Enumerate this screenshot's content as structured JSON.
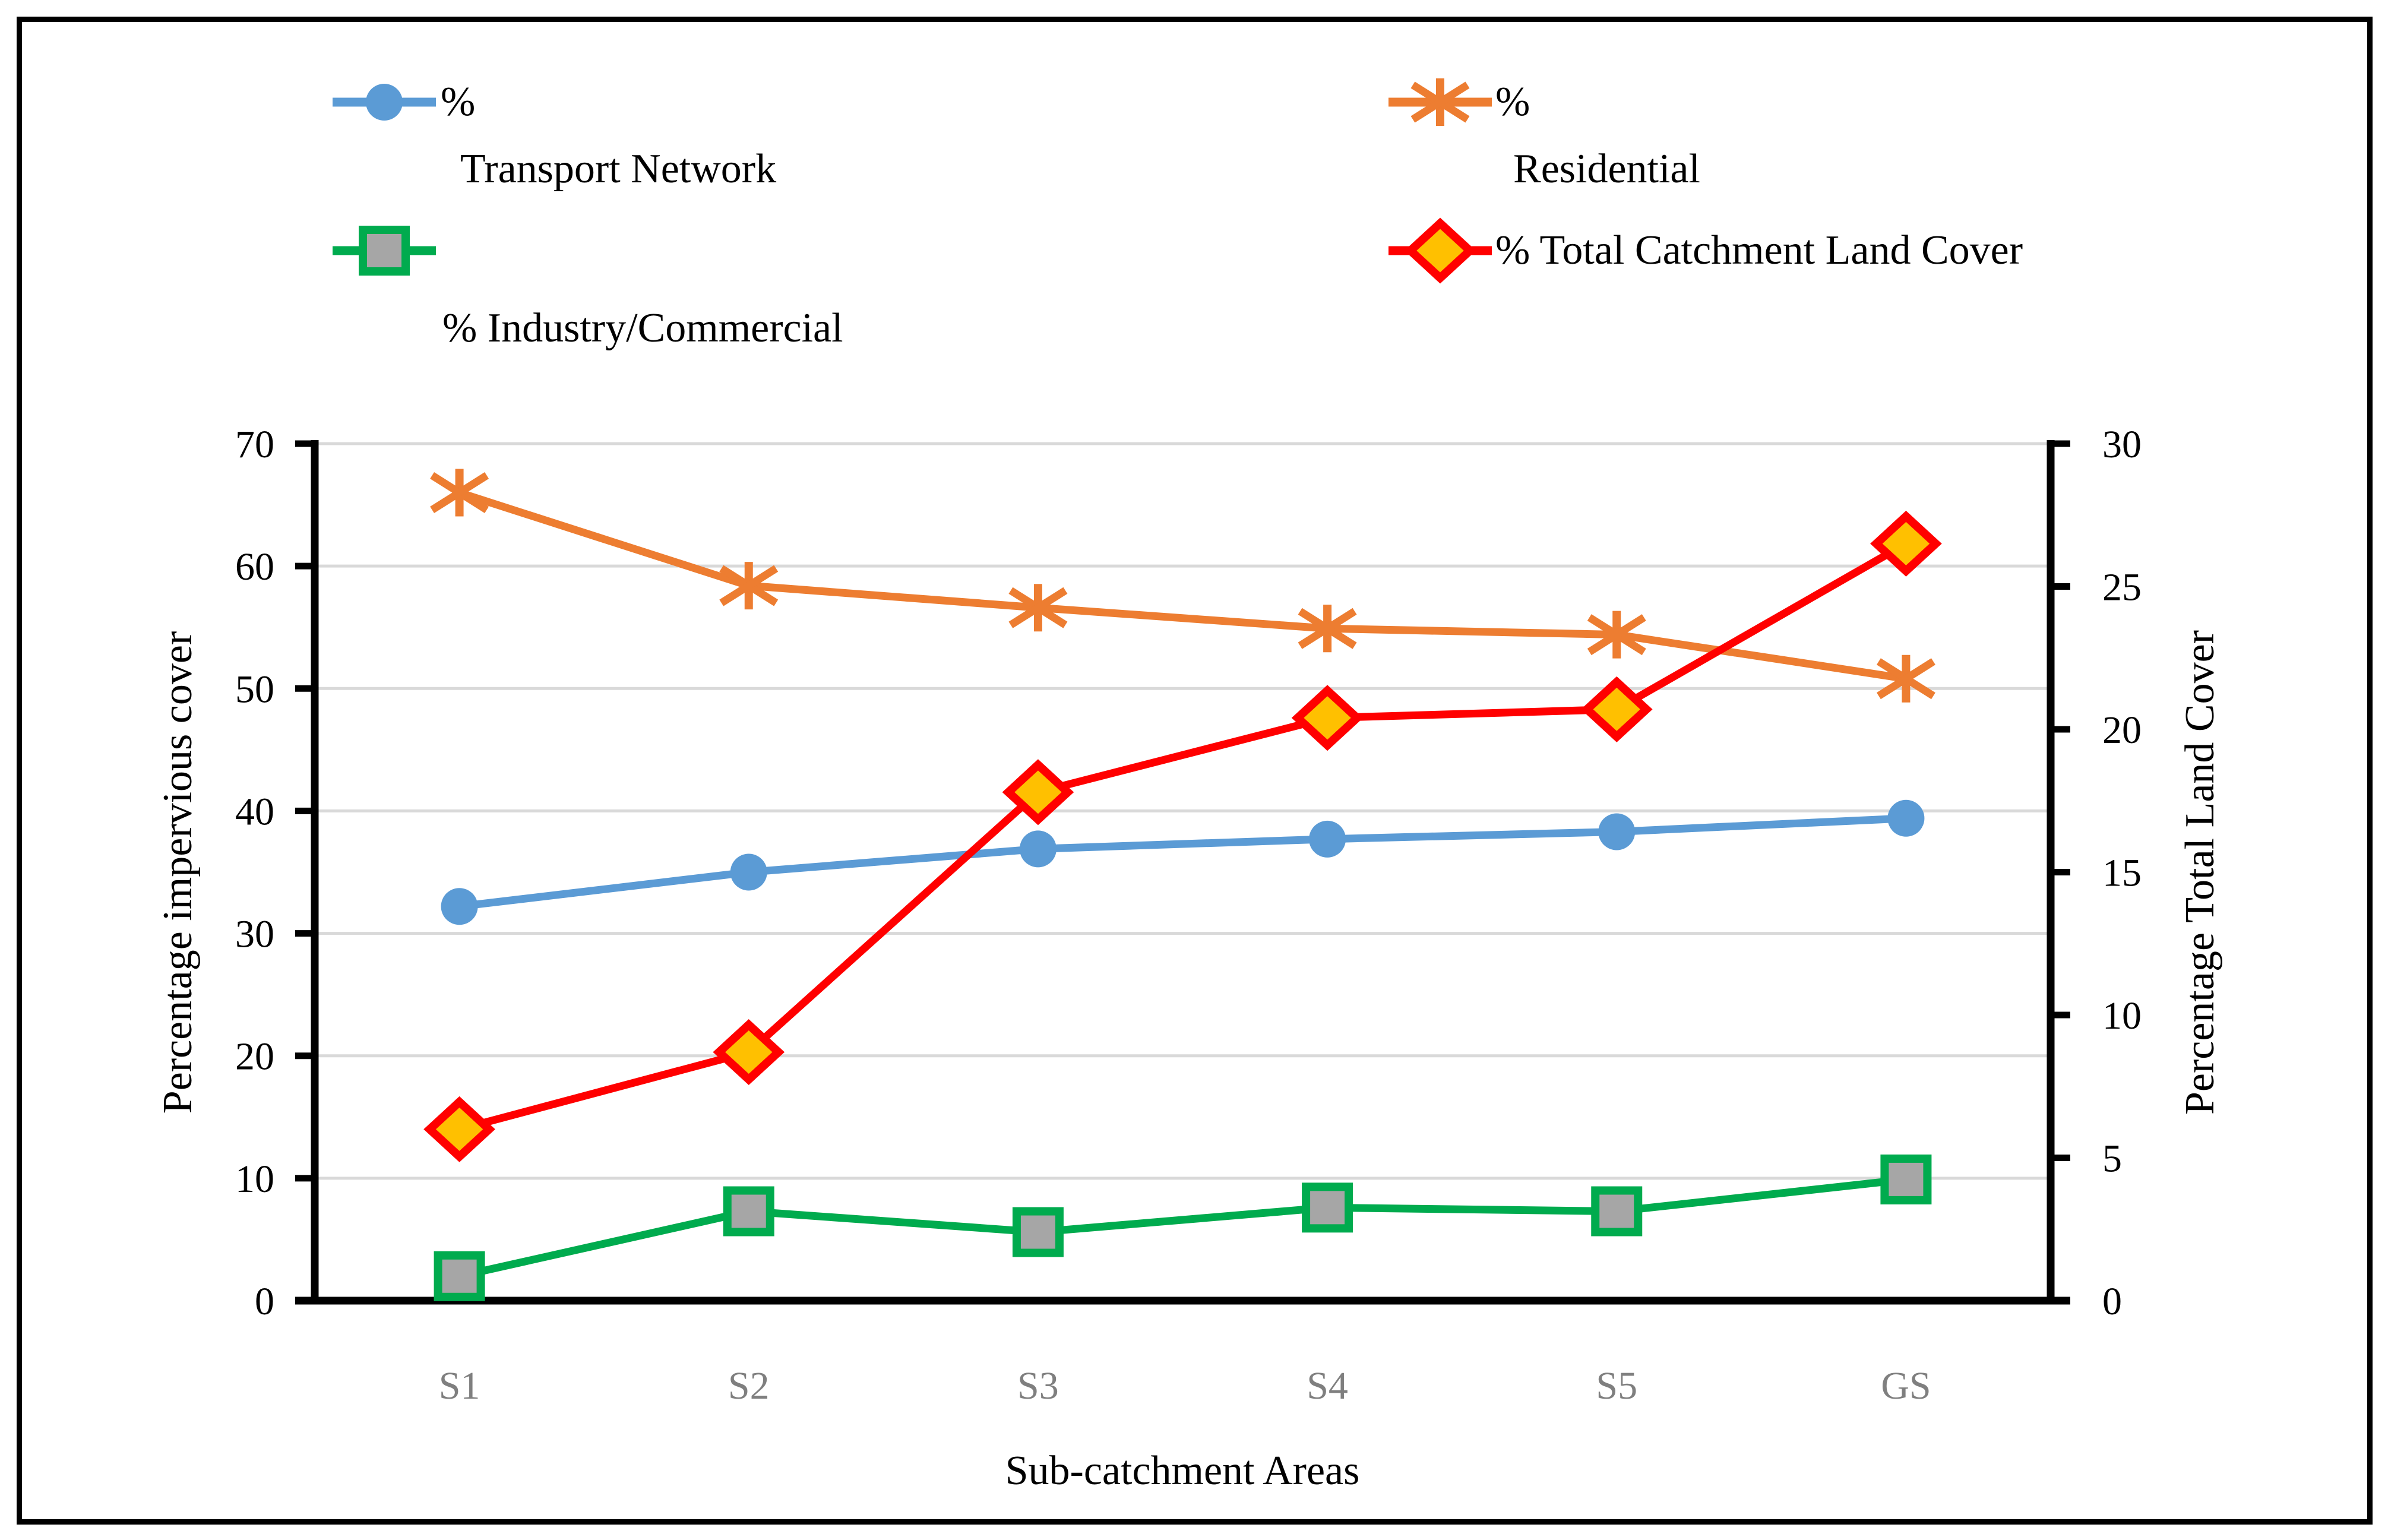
{
  "legend": {
    "items": [
      {
        "id": "transport",
        "label_line1": "%",
        "label_line2": "Transport Network"
      },
      {
        "id": "residential",
        "label_line1": "%",
        "label_line2": "Residential"
      },
      {
        "id": "industry",
        "label": "% Industry/Commercial"
      },
      {
        "id": "total",
        "label": "% Total Catchment Land Cover"
      }
    ]
  },
  "chart_data": {
    "type": "line",
    "categories": [
      "S1",
      "S2",
      "S3",
      "S4",
      "S5",
      "GS"
    ],
    "xlabel": "Sub-catchment Areas",
    "left_axis": {
      "label": "Percentage impervious cover",
      "ticks": [
        0,
        10,
        20,
        30,
        40,
        50,
        60,
        70
      ],
      "range": [
        0,
        70
      ]
    },
    "right_axis": {
      "label": "Percentage Total Land Cover",
      "ticks": [
        0,
        5,
        10,
        15,
        20,
        25,
        30
      ],
      "range": [
        0,
        30
      ]
    },
    "grid": true,
    "legend_position": "top",
    "series": [
      {
        "name": "% Transport Network",
        "axis": "left",
        "color": "#5B9BD5",
        "marker": "circle",
        "marker_fill": "#5B9BD5",
        "values": [
          32.2,
          35.0,
          36.9,
          37.7,
          38.3,
          39.4
        ]
      },
      {
        "name": "% Residential",
        "axis": "left",
        "color": "#ED7D31",
        "marker": "asterisk",
        "marker_fill": "#ED7D31",
        "values": [
          66.0,
          58.4,
          56.6,
          54.9,
          54.4,
          50.8
        ]
      },
      {
        "name": "% Industry/Commercial",
        "axis": "left",
        "color": "#00AB4E",
        "marker": "square",
        "marker_fill": "#A6A6A6",
        "values": [
          2.0,
          7.3,
          5.6,
          7.6,
          7.3,
          9.9
        ]
      },
      {
        "name": "% Total Catchment Land Cover",
        "axis": "right",
        "color": "#FF0000",
        "marker": "diamond",
        "marker_fill": "#FFC000",
        "values": [
          6.0,
          8.7,
          17.8,
          20.4,
          20.7,
          26.5
        ]
      }
    ],
    "colors": {
      "gridline": "#D9D9D9",
      "axis": "#000000",
      "category_label": "#7F7F7F",
      "tick_label": "#000000"
    }
  }
}
